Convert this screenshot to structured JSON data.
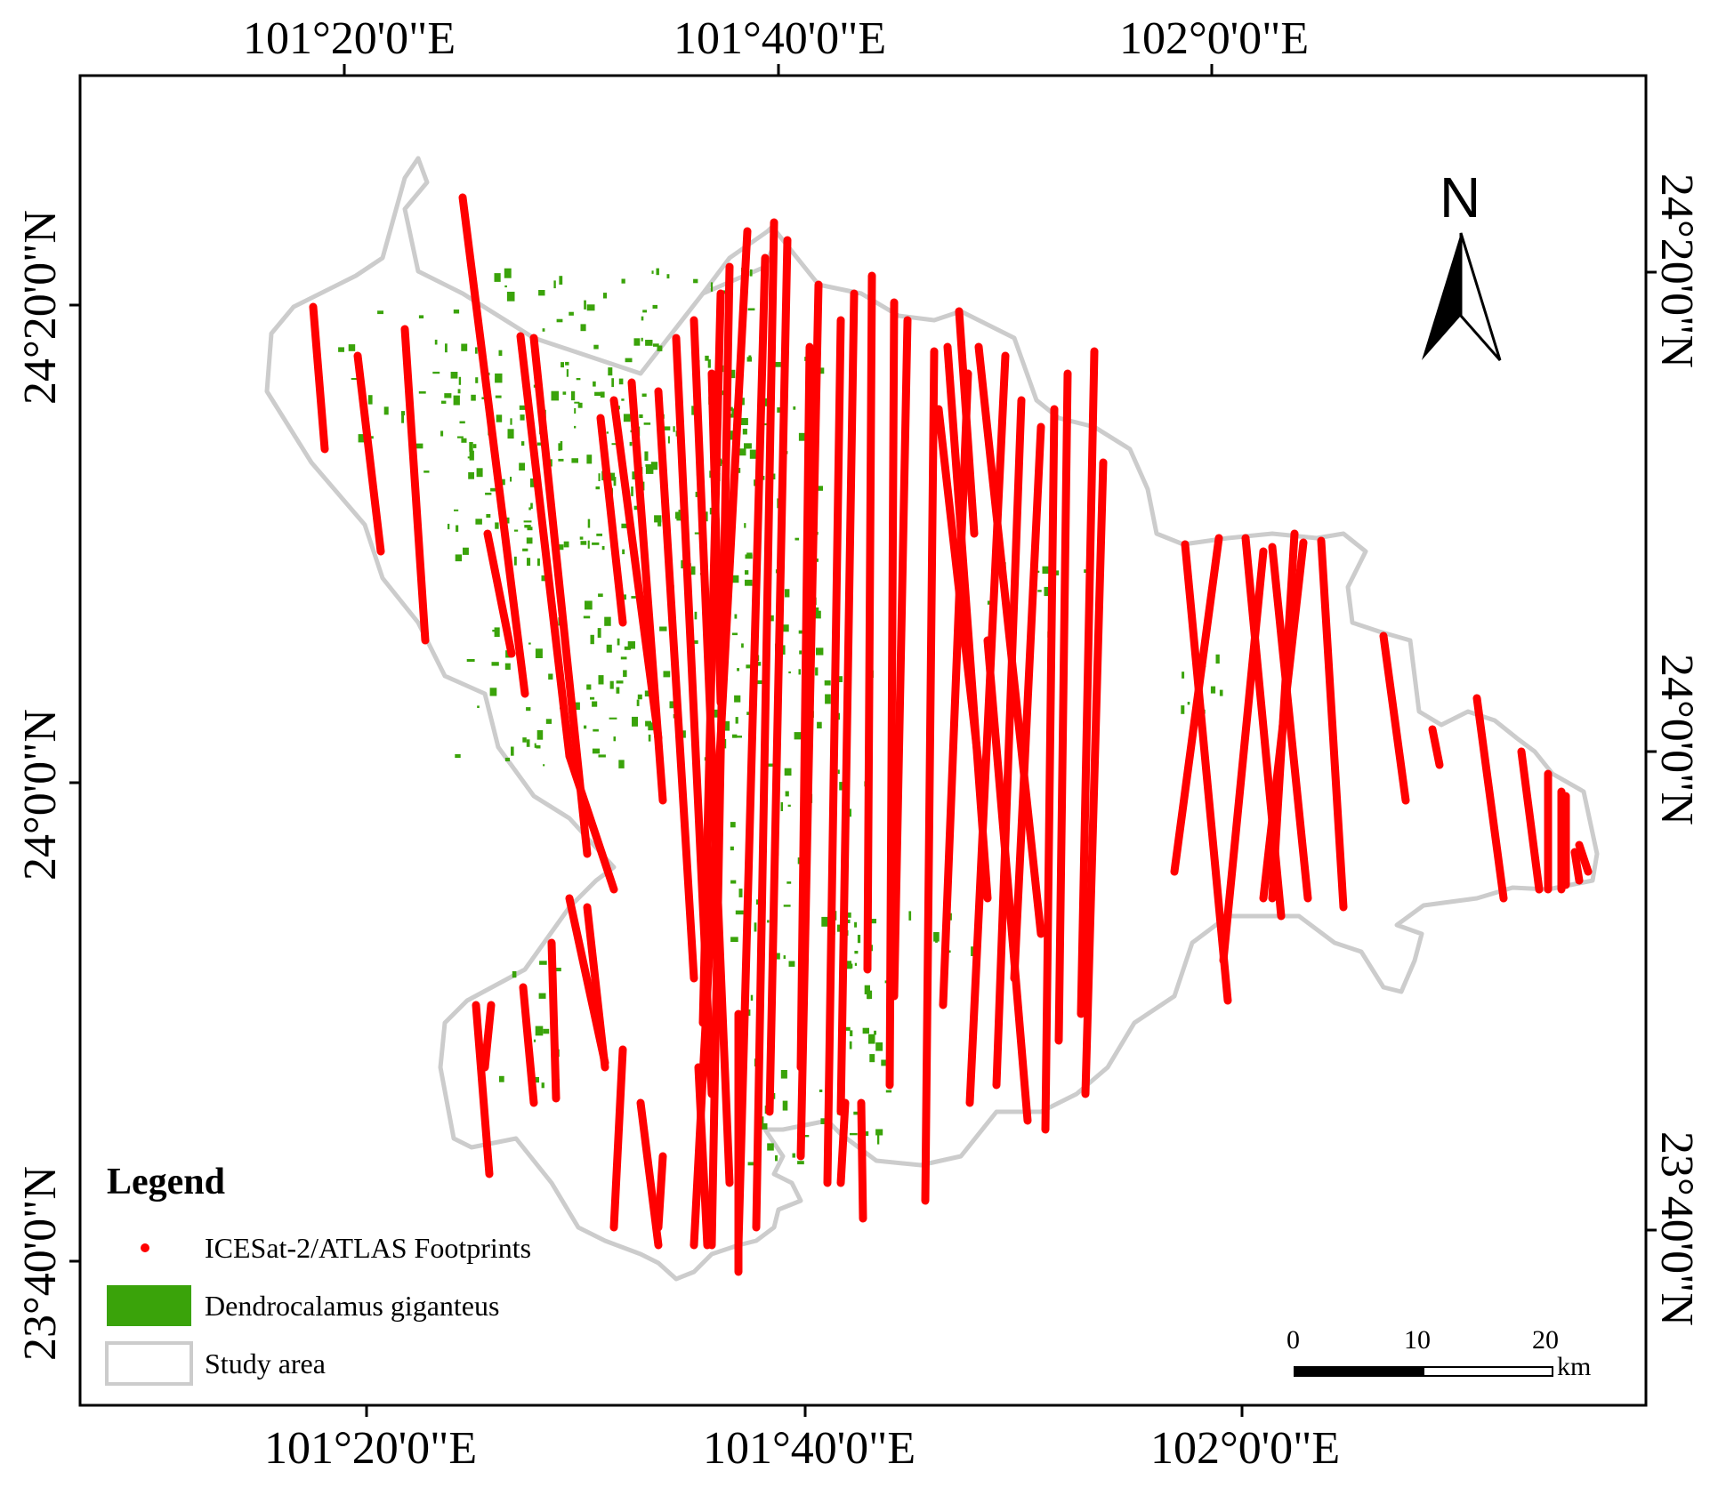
{
  "map": {
    "top_lon_labels": [
      "101°20'0\"E",
      "101°40'0\"E",
      "102°0'0\"E"
    ],
    "bottom_lon_labels": [
      "101°20'0\"E",
      "101°40'0\"E",
      "102°0'0\"E"
    ],
    "left_lat_labels": [
      "24°20'0\"N",
      "24°0'0\"N",
      "23°40'0\"N"
    ],
    "right_lat_labels": [
      "24°20'0\"N",
      "24°0'0\"N",
      "23°40'0\"N"
    ],
    "north_arrow": {
      "label": "N",
      "icon": "north-arrow-icon"
    },
    "scale_bar": {
      "ticks": [
        "0",
        "10",
        "20"
      ],
      "unit": "km"
    },
    "colors": {
      "footprint": "#ff0000",
      "vegetation": "#3aa30a",
      "study_area": "#cccccc",
      "frame": "#000000"
    }
  },
  "legend": {
    "title": "Legend",
    "items": [
      {
        "label": "ICESat-2/ATLAS Footprints",
        "icon": "red-dot-icon"
      },
      {
        "label": "Dendrocalamus giganteus",
        "icon": "green-fill-icon"
      },
      {
        "label": "Study area",
        "icon": "gray-outline-icon"
      }
    ]
  }
}
